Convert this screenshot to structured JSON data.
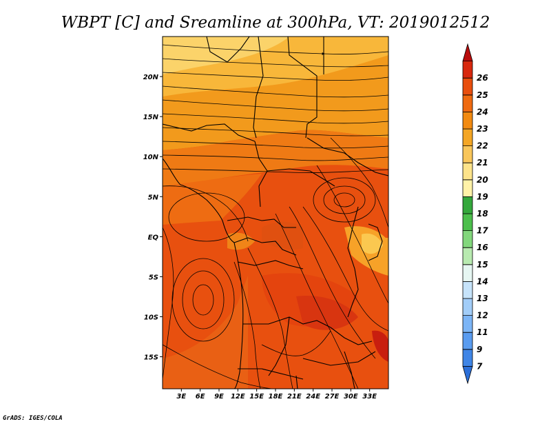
{
  "title": "WBPT [C] and Sreamline at 300hPa, VT: 2019012512",
  "credit": "GrADS: IGES/COLA",
  "map": {
    "lon_range": [
      0,
      36
    ],
    "lat_range": [
      -19,
      25
    ],
    "lon_ticks": [
      "3E",
      "6E",
      "9E",
      "12E",
      "15E",
      "18E",
      "21E",
      "24E",
      "27E",
      "30E",
      "33E"
    ],
    "lat_ticks": [
      "20N",
      "15N",
      "10N",
      "5N",
      "EQ",
      "5S",
      "10S",
      "15S"
    ]
  },
  "colorbar": {
    "labels": [
      "7",
      "9",
      "11",
      "12",
      "13",
      "14",
      "15",
      "16",
      "17",
      "18",
      "19",
      "20",
      "21",
      "22",
      "23",
      "24",
      "25",
      "26"
    ],
    "colors": [
      "#2c6fd8",
      "#3f85e6",
      "#5a9cf0",
      "#7cb5f6",
      "#a2cdf8",
      "#c6e3fa",
      "#e6f6f2",
      "#b8eab0",
      "#82d77c",
      "#4cbf4c",
      "#34a83c",
      "#fff2a8",
      "#fde38a",
      "#f9c65a",
      "#f4a625",
      "#f28a10",
      "#ef6a10",
      "#e84e0e",
      "#d8280e",
      "#b80c0c"
    ]
  }
}
